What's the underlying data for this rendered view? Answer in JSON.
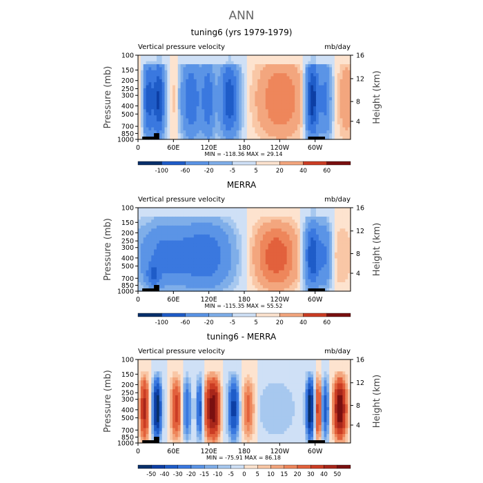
{
  "figure": {
    "title": "ANN"
  },
  "colors": {
    "blue_ramp": [
      "#08306b",
      "#0d3fa5",
      "#1f5cc8",
      "#3a78df",
      "#5b94e6",
      "#7faee9",
      "#a7c8ef",
      "#cfe0f6"
    ],
    "red_ramp": [
      "#fde3cf",
      "#f9c7a6",
      "#f3a67e",
      "#ee865b",
      "#e2613c",
      "#cb3d24",
      "#a8261a",
      "#7a1010"
    ]
  },
  "chart_data": [
    {
      "type": "heatmap",
      "title": "tuning6 (yrs 1979-1979)",
      "left_label": "Vertical pressure velocity",
      "units": "mb/day",
      "ylabel": "Pressure (mb)",
      "ylabel_right": "Height (km)",
      "y_ticks": [
        "100",
        "150",
        "200",
        "250",
        "300",
        "400",
        "500",
        "700",
        "850",
        "1000"
      ],
      "y_right_ticks": [
        "16",
        "12",
        "8",
        "4"
      ],
      "x_ticks": [
        "0",
        "60E",
        "120E",
        "180",
        "120W",
        "60W"
      ],
      "stats": "MIN = -118.36   MAX =  29.14",
      "colorbar_labels": [
        "-100",
        "-60",
        "-20",
        "-5",
        "5",
        "20",
        "40",
        "60"
      ],
      "range": [
        -118.36,
        29.14
      ]
    },
    {
      "type": "heatmap",
      "title": "MERRA",
      "left_label": "Vertical pressure velocity",
      "units": "mb/day",
      "ylabel": "Pressure (mb)",
      "ylabel_right": "Height (km)",
      "y_ticks": [
        "100",
        "150",
        "200",
        "250",
        "300",
        "400",
        "500",
        "700",
        "850",
        "1000"
      ],
      "y_right_ticks": [
        "16",
        "12",
        "8",
        "4"
      ],
      "x_ticks": [
        "0",
        "60E",
        "120E",
        "180",
        "120W",
        "60W"
      ],
      "stats": "MIN = -115.35   MAX =  55.52",
      "colorbar_labels": [
        "-100",
        "-60",
        "-20",
        "-5",
        "5",
        "20",
        "40",
        "60"
      ],
      "range": [
        -115.35,
        55.52
      ]
    },
    {
      "type": "heatmap",
      "title": "tuning6 - MERRA",
      "left_label": "Vertical pressure velocity",
      "units": "mb/day",
      "ylabel": "Pressure (mb)",
      "ylabel_right": "Height (km)",
      "y_ticks": [
        "100",
        "150",
        "200",
        "250",
        "300",
        "400",
        "500",
        "700",
        "850",
        "1000"
      ],
      "y_right_ticks": [
        "16",
        "12",
        "8",
        "4"
      ],
      "x_ticks": [
        "0",
        "60E",
        "120E",
        "180",
        "120W",
        "60W"
      ],
      "stats": "MIN = -75.91   MAX =  86.18",
      "colorbar_labels": [
        "-50",
        "-40",
        "-30",
        "-20",
        "-15",
        "-10",
        "-5",
        "0",
        "5",
        "10",
        "15",
        "20",
        "30",
        "40",
        "50"
      ],
      "range": [
        -75.91,
        86.18
      ]
    }
  ]
}
